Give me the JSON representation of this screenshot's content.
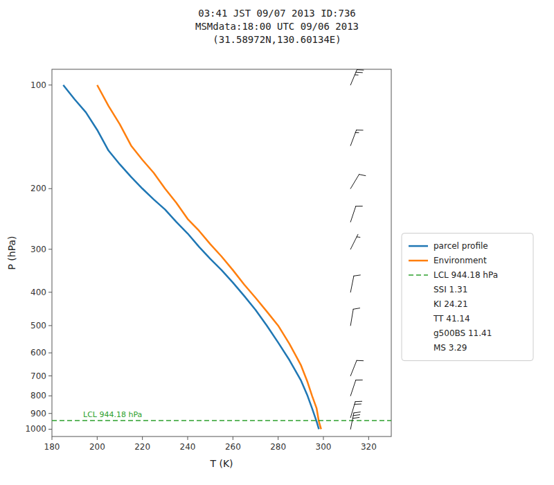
{
  "chart_data": {
    "type": "line",
    "title": "03:41 JST 09/07 2013  ID:736\nMSMdata:18:00 UTC 09/06 2013\n(31.58972N,130.60134E)",
    "x_label": "T (K)",
    "y_label": "P (hPa)",
    "log": "y",
    "grid": false,
    "legend": "right",
    "xlim": [
      180,
      330
    ],
    "xticks": [
      180,
      200,
      220,
      240,
      260,
      280,
      300,
      320
    ],
    "ylim": [
      1050,
      90
    ],
    "yticks": [
      100,
      200,
      300,
      400,
      500,
      600,
      700,
      800,
      900,
      1000
    ],
    "series": [
      {
        "name": "parcel profile",
        "color": "#1f77b4",
        "x": [
          185,
          190,
          195,
          200,
          205,
          210,
          215,
          220,
          225,
          230,
          235,
          240,
          245,
          250,
          255,
          260,
          265,
          270,
          275,
          280,
          285,
          290,
          293,
          295,
          297,
          298
        ],
        "values": [
          100,
          110,
          120,
          135,
          155,
          170,
          185,
          200,
          215,
          230,
          250,
          270,
          295,
          320,
          345,
          375,
          410,
          450,
          500,
          560,
          630,
          720,
          800,
          870,
          950,
          1000
        ]
      },
      {
        "name": "Environment",
        "color": "#ff7f0e",
        "x": [
          200,
          205,
          210,
          215,
          220,
          225,
          230,
          235,
          240,
          245,
          250,
          255,
          260,
          265,
          270,
          275,
          280,
          285,
          290,
          293,
          295,
          297,
          298,
          299
        ],
        "values": [
          100,
          115,
          130,
          150,
          165,
          180,
          200,
          220,
          245,
          265,
          290,
          315,
          345,
          380,
          415,
          455,
          500,
          565,
          650,
          730,
          800,
          870,
          950,
          1000
        ]
      }
    ],
    "reference_lines": [
      {
        "name": "LCL 944.18 hPa",
        "value": 944.18,
        "color": "#2ca02c",
        "line_style": "dashed"
      }
    ],
    "wind_barbs": {
      "color": "black",
      "x": [
        312,
        312,
        312,
        312,
        312,
        312,
        312,
        312,
        312,
        312,
        312
      ],
      "values": [
        100,
        150,
        200,
        250,
        300,
        400,
        500,
        700,
        800,
        925,
        1000
      ],
      "u": [
        -5,
        -3,
        -3,
        -2,
        -2,
        -1,
        -1,
        -2,
        -2,
        -3,
        -3
      ],
      "v": [
        -12,
        -8,
        -5,
        -6,
        -4,
        -5,
        -6,
        -5,
        -6,
        -10,
        -15
      ]
    },
    "annotations": [
      "SSI 1.31",
      "KI 24.21",
      "TT 41.14",
      "g500BS 11.41",
      "MS 3.29"
    ]
  }
}
